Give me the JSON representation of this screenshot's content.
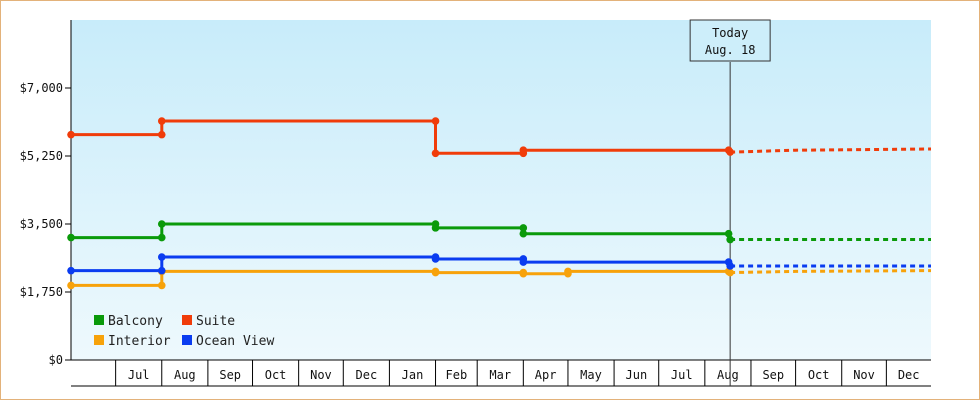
{
  "chart_data": {
    "type": "line",
    "title": "",
    "xlabel": "",
    "ylabel": "",
    "ylim": [
      0,
      8750
    ],
    "y_ticks": [
      0,
      1750,
      3500,
      5250,
      7000
    ],
    "y_tick_labels": [
      "$0",
      "$1,750",
      "$3,500",
      "$5,250",
      "$7,000"
    ],
    "x_range": [
      "2022-06-01",
      "2023-12-31"
    ],
    "x_month_labels": [
      {
        "date": "2022-07-01",
        "label": "Jul"
      },
      {
        "date": "2022-08-01",
        "label": "Aug"
      },
      {
        "date": "2022-09-01",
        "label": "Sep"
      },
      {
        "date": "2022-10-01",
        "label": "Oct"
      },
      {
        "date": "2022-11-01",
        "label": "Nov"
      },
      {
        "date": "2022-12-01",
        "label": "Dec"
      },
      {
        "date": "2023-01-01",
        "label": "Jan"
      },
      {
        "date": "2023-02-01",
        "label": "Feb"
      },
      {
        "date": "2023-03-01",
        "label": "Mar"
      },
      {
        "date": "2023-04-01",
        "label": "Apr"
      },
      {
        "date": "2023-05-01",
        "label": "May"
      },
      {
        "date": "2023-06-01",
        "label": "Jun"
      },
      {
        "date": "2023-07-01",
        "label": "Jul"
      },
      {
        "date": "2023-08-01",
        "label": "Aug"
      },
      {
        "date": "2023-09-01",
        "label": "Sep"
      },
      {
        "date": "2023-10-01",
        "label": "Oct"
      },
      {
        "date": "2023-11-01",
        "label": "Nov"
      },
      {
        "date": "2023-12-01",
        "label": "Dec"
      }
    ],
    "today": {
      "date": "2023-08-18",
      "line1": "Today",
      "line2": "Aug. 18"
    },
    "grid": false,
    "legend_position": "bottom-left",
    "background_gradient": [
      "#c8ecfa",
      "#eef9fd"
    ],
    "series": [
      {
        "name": "Balcony",
        "color": "#0a9a0a",
        "points": [
          {
            "x": "2022-06-01",
            "y": 3150
          },
          {
            "x": "2022-08-01",
            "y": 3150
          },
          {
            "x": "2022-08-01",
            "y": 3500
          },
          {
            "x": "2023-02-01",
            "y": 3500
          },
          {
            "x": "2023-02-01",
            "y": 3400
          },
          {
            "x": "2023-04-01",
            "y": 3400
          },
          {
            "x": "2023-04-01",
            "y": 3250
          },
          {
            "x": "2023-08-17",
            "y": 3250
          },
          {
            "x": "2023-08-18",
            "y": 3100
          }
        ],
        "forecast": [
          {
            "x": "2023-08-18",
            "y": 3100
          },
          {
            "x": "2023-12-31",
            "y": 3100
          }
        ]
      },
      {
        "name": "Suite",
        "color": "#f03c0a",
        "points": [
          {
            "x": "2022-06-01",
            "y": 5800
          },
          {
            "x": "2022-08-01",
            "y": 5800
          },
          {
            "x": "2022-08-01",
            "y": 6150
          },
          {
            "x": "2023-02-01",
            "y": 6150
          },
          {
            "x": "2023-02-01",
            "y": 5320
          },
          {
            "x": "2023-04-01",
            "y": 5320
          },
          {
            "x": "2023-04-01",
            "y": 5400
          },
          {
            "x": "2023-08-17",
            "y": 5400
          },
          {
            "x": "2023-08-18",
            "y": 5350
          }
        ],
        "forecast": [
          {
            "x": "2023-08-18",
            "y": 5350
          },
          {
            "x": "2023-09-15",
            "y": 5380
          },
          {
            "x": "2023-10-01",
            "y": 5400
          },
          {
            "x": "2023-12-31",
            "y": 5430
          }
        ]
      },
      {
        "name": "Interior",
        "color": "#f7a20a",
        "points": [
          {
            "x": "2022-06-01",
            "y": 1920
          },
          {
            "x": "2022-08-01",
            "y": 1920
          },
          {
            "x": "2022-08-01",
            "y": 2280
          },
          {
            "x": "2023-02-01",
            "y": 2280
          },
          {
            "x": "2023-02-01",
            "y": 2250
          },
          {
            "x": "2023-04-01",
            "y": 2250
          },
          {
            "x": "2023-04-01",
            "y": 2220
          },
          {
            "x": "2023-05-01",
            "y": 2220
          },
          {
            "x": "2023-05-01",
            "y": 2280
          },
          {
            "x": "2023-08-17",
            "y": 2280
          },
          {
            "x": "2023-08-18",
            "y": 2250
          }
        ],
        "forecast": [
          {
            "x": "2023-08-18",
            "y": 2250
          },
          {
            "x": "2023-10-01",
            "y": 2280
          },
          {
            "x": "2023-12-31",
            "y": 2300
          }
        ]
      },
      {
        "name": "Ocean View",
        "color": "#0a3cf0",
        "points": [
          {
            "x": "2022-06-01",
            "y": 2300
          },
          {
            "x": "2022-08-01",
            "y": 2300
          },
          {
            "x": "2022-08-01",
            "y": 2650
          },
          {
            "x": "2023-02-01",
            "y": 2650
          },
          {
            "x": "2023-02-01",
            "y": 2600
          },
          {
            "x": "2023-04-01",
            "y": 2600
          },
          {
            "x": "2023-04-01",
            "y": 2520
          },
          {
            "x": "2023-08-17",
            "y": 2520
          },
          {
            "x": "2023-08-18",
            "y": 2420
          }
        ],
        "forecast": [
          {
            "x": "2023-08-18",
            "y": 2420
          },
          {
            "x": "2023-12-31",
            "y": 2420
          }
        ]
      }
    ],
    "legend": [
      {
        "name": "Balcony",
        "color": "#0a9a0a"
      },
      {
        "name": "Suite",
        "color": "#f03c0a"
      },
      {
        "name": "Interior",
        "color": "#f7a20a"
      },
      {
        "name": "Ocean View",
        "color": "#0a3cf0"
      }
    ]
  }
}
